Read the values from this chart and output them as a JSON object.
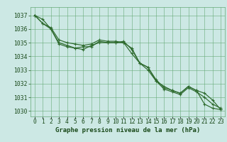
{
  "x": [
    0,
    1,
    2,
    3,
    4,
    5,
    6,
    7,
    8,
    9,
    10,
    11,
    12,
    13,
    14,
    15,
    16,
    17,
    18,
    19,
    20,
    21,
    22,
    23
  ],
  "line1": [
    1037.0,
    1036.7,
    1036.0,
    1035.0,
    1034.8,
    1034.6,
    1034.5,
    1034.8,
    1035.0,
    1035.0,
    1035.0,
    1035.0,
    1034.2,
    1033.5,
    1033.2,
    1032.2,
    1031.8,
    1031.5,
    1031.3,
    1031.8,
    1031.5,
    1030.5,
    1030.2,
    1030.1
  ],
  "line2": [
    1037.0,
    1036.4,
    1036.0,
    1034.9,
    1034.7,
    1034.6,
    1034.7,
    1034.7,
    1035.1,
    1035.0,
    1035.0,
    1035.1,
    1034.5,
    1033.5,
    1033.0,
    1032.2,
    1031.6,
    1031.4,
    1031.2,
    1031.7,
    1031.4,
    1031.0,
    1030.5,
    1030.2
  ],
  "line3": [
    1037.0,
    1036.4,
    1036.1,
    1035.2,
    1035.0,
    1034.9,
    1034.8,
    1034.9,
    1035.2,
    1035.1,
    1035.1,
    1035.0,
    1034.6,
    1033.5,
    1033.2,
    1032.3,
    1031.7,
    1031.5,
    1031.3,
    1031.8,
    1031.5,
    1031.3,
    1030.8,
    1030.1
  ],
  "bg_color": "#cce8e4",
  "grid_color": "#66aa77",
  "line_color": "#2d6a2d",
  "text_color": "#1a4a1a",
  "xlabel": "Graphe pression niveau de la mer (hPa)",
  "ylim_min": 1029.6,
  "ylim_max": 1037.6,
  "yticks": [
    1030,
    1031,
    1032,
    1033,
    1034,
    1035,
    1036,
    1037
  ],
  "tick_fontsize": 5.8,
  "xlabel_fontsize": 6.5
}
